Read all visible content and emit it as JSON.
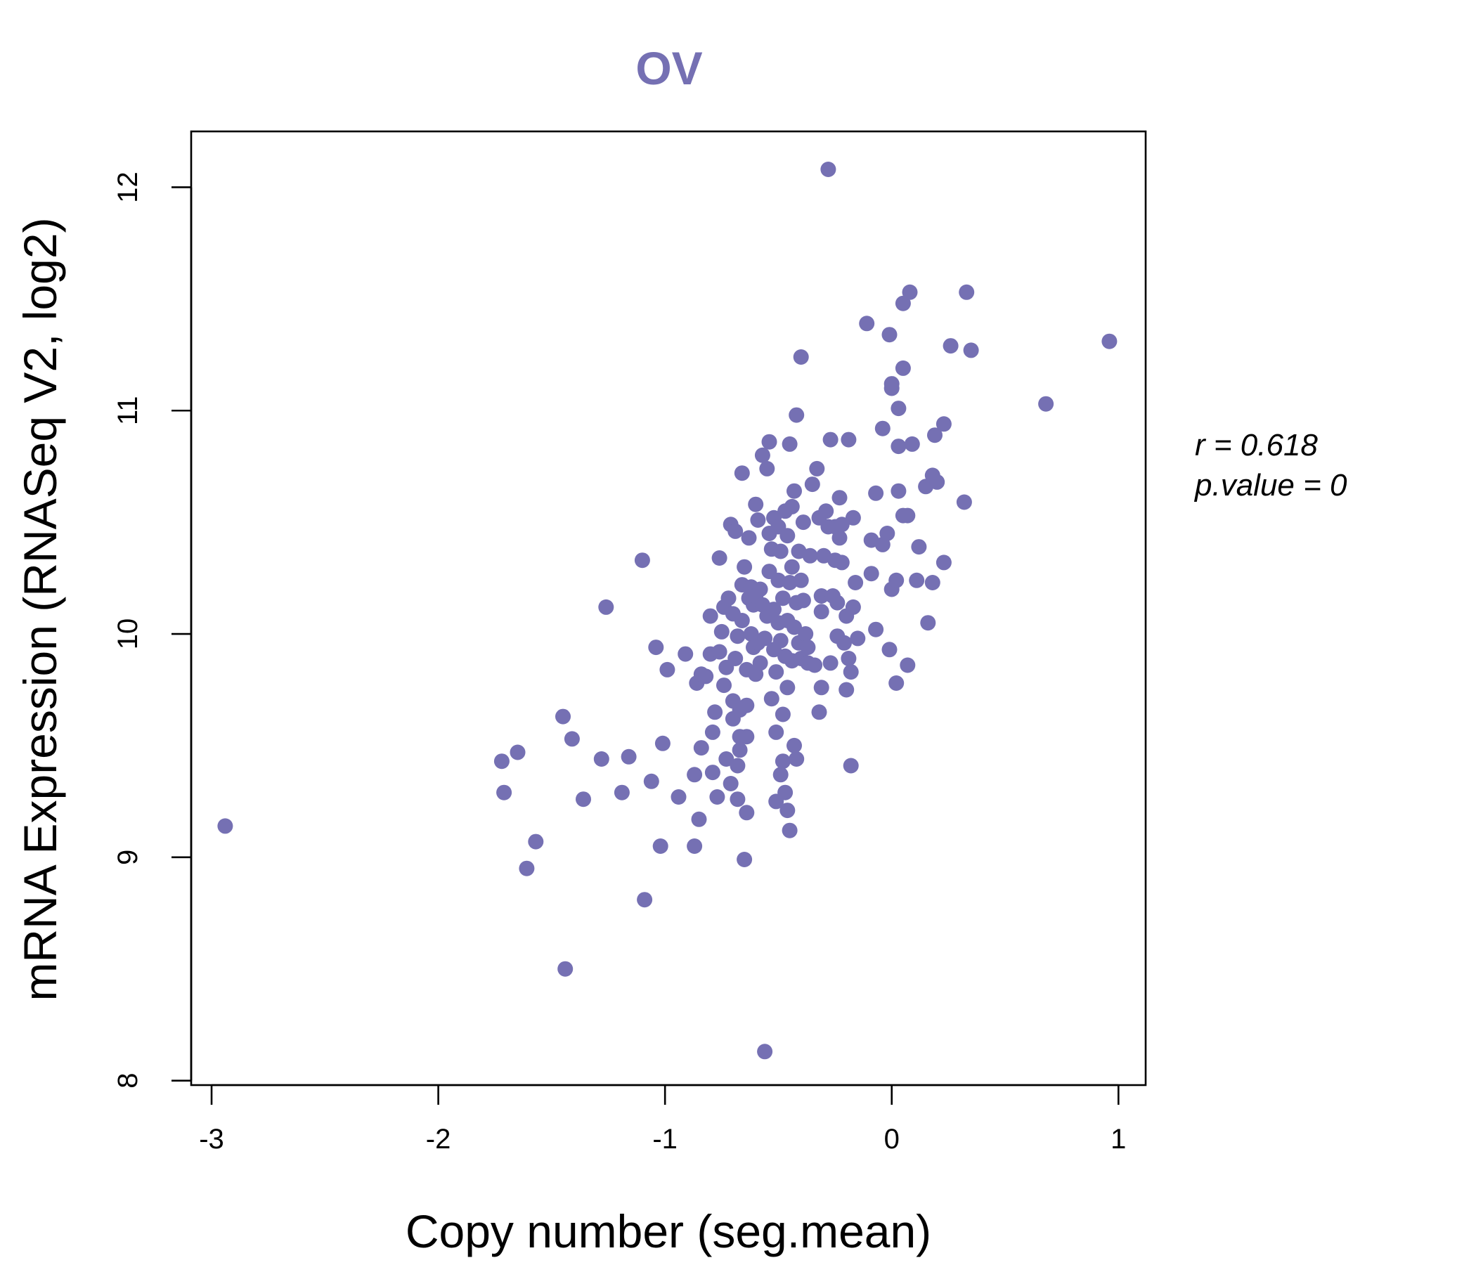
{
  "chart_data": {
    "type": "scatter",
    "title": "OV",
    "xlabel": "Copy number (seg.mean)",
    "ylabel": "mRNA Expression (RNASeq V2, log2)",
    "xlim": [
      -3.09,
      1.12
    ],
    "ylim": [
      7.98,
      12.25
    ],
    "x_ticks": [
      -3,
      -2,
      -1,
      0,
      1
    ],
    "x_tick_labels": [
      "-3",
      "-2",
      "-1",
      "0",
      "1"
    ],
    "y_ticks": [
      8,
      9,
      10,
      11,
      12
    ],
    "y_tick_labels": [
      "8",
      "9",
      "10",
      "11",
      "12"
    ],
    "grid": false,
    "point_color": "#7570b3",
    "stats": {
      "r": "r = 0.618",
      "p": "p.value = 0"
    },
    "points": [
      [
        -2.94,
        9.14
      ],
      [
        -1.72,
        9.43
      ],
      [
        -1.71,
        9.29
      ],
      [
        -1.65,
        9.47
      ],
      [
        -1.61,
        8.95
      ],
      [
        -1.57,
        9.07
      ],
      [
        -1.45,
        9.63
      ],
      [
        -1.44,
        8.5
      ],
      [
        -1.41,
        9.53
      ],
      [
        -1.36,
        9.26
      ],
      [
        -1.28,
        9.44
      ],
      [
        -1.26,
        10.12
      ],
      [
        -1.19,
        9.29
      ],
      [
        -1.16,
        9.45
      ],
      [
        -1.1,
        10.33
      ],
      [
        -1.09,
        8.81
      ],
      [
        -1.06,
        9.34
      ],
      [
        -1.04,
        9.94
      ],
      [
        -1.02,
        9.05
      ],
      [
        -1.01,
        9.51
      ],
      [
        -0.99,
        9.84
      ],
      [
        -0.94,
        9.27
      ],
      [
        -0.91,
        9.91
      ],
      [
        -0.87,
        9.05
      ],
      [
        -0.87,
        9.37
      ],
      [
        -0.86,
        9.78
      ],
      [
        -0.85,
        9.17
      ],
      [
        -0.84,
        9.49
      ],
      [
        -0.84,
        9.82
      ],
      [
        -0.82,
        9.81
      ],
      [
        -0.8,
        9.91
      ],
      [
        -0.8,
        10.08
      ],
      [
        -0.79,
        9.56
      ],
      [
        -0.79,
        9.38
      ],
      [
        -0.78,
        9.65
      ],
      [
        -0.77,
        9.27
      ],
      [
        -0.76,
        9.92
      ],
      [
        -0.76,
        10.34
      ],
      [
        -0.75,
        10.01
      ],
      [
        -0.74,
        10.12
      ],
      [
        -0.74,
        9.77
      ],
      [
        -0.73,
        9.44
      ],
      [
        -0.73,
        9.85
      ],
      [
        -0.72,
        10.16
      ],
      [
        -0.71,
        9.33
      ],
      [
        -0.71,
        10.49
      ],
      [
        -0.7,
        9.62
      ],
      [
        -0.7,
        9.7
      ],
      [
        -0.7,
        10.09
      ],
      [
        -0.69,
        9.89
      ],
      [
        -0.69,
        10.46
      ],
      [
        -0.68,
        9.41
      ],
      [
        -0.68,
        9.26
      ],
      [
        -0.68,
        9.99
      ],
      [
        -0.67,
        9.48
      ],
      [
        -0.67,
        9.54
      ],
      [
        -0.67,
        9.66
      ],
      [
        -0.66,
        10.22
      ],
      [
        -0.66,
        10.06
      ],
      [
        -0.66,
        10.72
      ],
      [
        -0.65,
        8.99
      ],
      [
        -0.65,
        10.3
      ],
      [
        -0.64,
        9.54
      ],
      [
        -0.64,
        9.2
      ],
      [
        -0.64,
        9.68
      ],
      [
        -0.64,
        9.84
      ],
      [
        -0.63,
        10.16
      ],
      [
        -0.63,
        10.43
      ],
      [
        -0.62,
        10.0
      ],
      [
        -0.62,
        10.21
      ],
      [
        -0.61,
        9.94
      ],
      [
        -0.61,
        10.13
      ],
      [
        -0.6,
        10.58
      ],
      [
        -0.6,
        9.82
      ],
      [
        -0.6,
        10.17
      ],
      [
        -0.59,
        9.96
      ],
      [
        -0.59,
        10.51
      ],
      [
        -0.58,
        9.87
      ],
      [
        -0.58,
        10.2
      ],
      [
        -0.57,
        10.13
      ],
      [
        -0.57,
        10.8
      ],
      [
        -0.56,
        8.13
      ],
      [
        -0.56,
        9.98
      ],
      [
        -0.55,
        10.08
      ],
      [
        -0.55,
        10.74
      ],
      [
        -0.54,
        10.28
      ],
      [
        -0.54,
        10.86
      ],
      [
        -0.54,
        10.45
      ],
      [
        -0.53,
        9.71
      ],
      [
        -0.53,
        10.38
      ],
      [
        -0.52,
        9.93
      ],
      [
        -0.52,
        10.11
      ],
      [
        -0.52,
        10.52
      ],
      [
        -0.51,
        9.25
      ],
      [
        -0.51,
        9.56
      ],
      [
        -0.51,
        9.83
      ],
      [
        -0.5,
        10.05
      ],
      [
        -0.5,
        10.24
      ],
      [
        -0.5,
        10.48
      ],
      [
        -0.49,
        9.37
      ],
      [
        -0.49,
        9.97
      ],
      [
        -0.49,
        10.37
      ],
      [
        -0.48,
        9.64
      ],
      [
        -0.48,
        9.43
      ],
      [
        -0.48,
        10.16
      ],
      [
        -0.47,
        9.9
      ],
      [
        -0.47,
        10.55
      ],
      [
        -0.47,
        9.29
      ],
      [
        -0.46,
        9.76
      ],
      [
        -0.46,
        10.06
      ],
      [
        -0.46,
        9.21
      ],
      [
        -0.46,
        10.44
      ],
      [
        -0.45,
        9.12
      ],
      [
        -0.45,
        10.23
      ],
      [
        -0.45,
        10.85
      ],
      [
        -0.44,
        9.88
      ],
      [
        -0.44,
        10.3
      ],
      [
        -0.44,
        10.57
      ],
      [
        -0.43,
        9.5
      ],
      [
        -0.43,
        10.03
      ],
      [
        -0.43,
        10.64
      ],
      [
        -0.42,
        9.44
      ],
      [
        -0.42,
        10.98
      ],
      [
        -0.42,
        10.14
      ],
      [
        -0.41,
        9.96
      ],
      [
        -0.41,
        10.37
      ],
      [
        -0.4,
        9.89
      ],
      [
        -0.4,
        11.24
      ],
      [
        -0.4,
        10.24
      ],
      [
        -0.39,
        10.15
      ],
      [
        -0.39,
        10.5
      ],
      [
        -0.38,
        10.0
      ],
      [
        -0.37,
        9.94
      ],
      [
        -0.37,
        9.87
      ],
      [
        -0.36,
        10.35
      ],
      [
        -0.35,
        10.67
      ],
      [
        -0.34,
        9.86
      ],
      [
        -0.33,
        10.74
      ],
      [
        -0.32,
        9.65
      ],
      [
        -0.32,
        10.52
      ],
      [
        -0.31,
        10.1
      ],
      [
        -0.31,
        10.17
      ],
      [
        -0.31,
        9.76
      ],
      [
        -0.3,
        10.35
      ],
      [
        -0.29,
        10.55
      ],
      [
        -0.28,
        10.48
      ],
      [
        -0.28,
        12.08
      ],
      [
        -0.27,
        9.87
      ],
      [
        -0.27,
        10.87
      ],
      [
        -0.26,
        10.17
      ],
      [
        -0.25,
        10.33
      ],
      [
        -0.25,
        10.48
      ],
      [
        -0.24,
        9.99
      ],
      [
        -0.24,
        10.14
      ],
      [
        -0.23,
        10.61
      ],
      [
        -0.23,
        10.43
      ],
      [
        -0.22,
        10.49
      ],
      [
        -0.22,
        10.32
      ],
      [
        -0.21,
        9.96
      ],
      [
        -0.2,
        9.75
      ],
      [
        -0.2,
        10.08
      ],
      [
        -0.19,
        9.89
      ],
      [
        -0.19,
        10.87
      ],
      [
        -0.18,
        9.83
      ],
      [
        -0.18,
        9.41
      ],
      [
        -0.17,
        10.12
      ],
      [
        -0.17,
        10.52
      ],
      [
        -0.16,
        10.23
      ],
      [
        -0.15,
        9.98
      ],
      [
        -0.11,
        11.39
      ],
      [
        -0.09,
        10.27
      ],
      [
        -0.09,
        10.42
      ],
      [
        -0.07,
        10.63
      ],
      [
        -0.07,
        10.02
      ],
      [
        -0.04,
        10.4
      ],
      [
        -0.04,
        10.92
      ],
      [
        -0.02,
        10.45
      ],
      [
        -0.01,
        11.34
      ],
      [
        -0.01,
        9.93
      ],
      [
        0.0,
        11.1
      ],
      [
        0.0,
        10.2
      ],
      [
        0.0,
        11.12
      ],
      [
        0.02,
        9.78
      ],
      [
        0.02,
        10.24
      ],
      [
        0.03,
        10.84
      ],
      [
        0.03,
        10.64
      ],
      [
        0.03,
        11.01
      ],
      [
        0.05,
        11.19
      ],
      [
        0.05,
        11.48
      ],
      [
        0.05,
        10.53
      ],
      [
        0.07,
        9.86
      ],
      [
        0.07,
        10.53
      ],
      [
        0.08,
        11.53
      ],
      [
        0.09,
        10.85
      ],
      [
        0.11,
        10.24
      ],
      [
        0.12,
        10.39
      ],
      [
        0.15,
        10.66
      ],
      [
        0.16,
        10.05
      ],
      [
        0.18,
        10.23
      ],
      [
        0.18,
        10.71
      ],
      [
        0.19,
        10.89
      ],
      [
        0.2,
        10.68
      ],
      [
        0.23,
        10.94
      ],
      [
        0.23,
        10.32
      ],
      [
        0.26,
        11.29
      ],
      [
        0.32,
        10.59
      ],
      [
        0.33,
        11.53
      ],
      [
        0.35,
        11.27
      ],
      [
        0.68,
        11.03
      ],
      [
        0.96,
        11.31
      ]
    ]
  }
}
